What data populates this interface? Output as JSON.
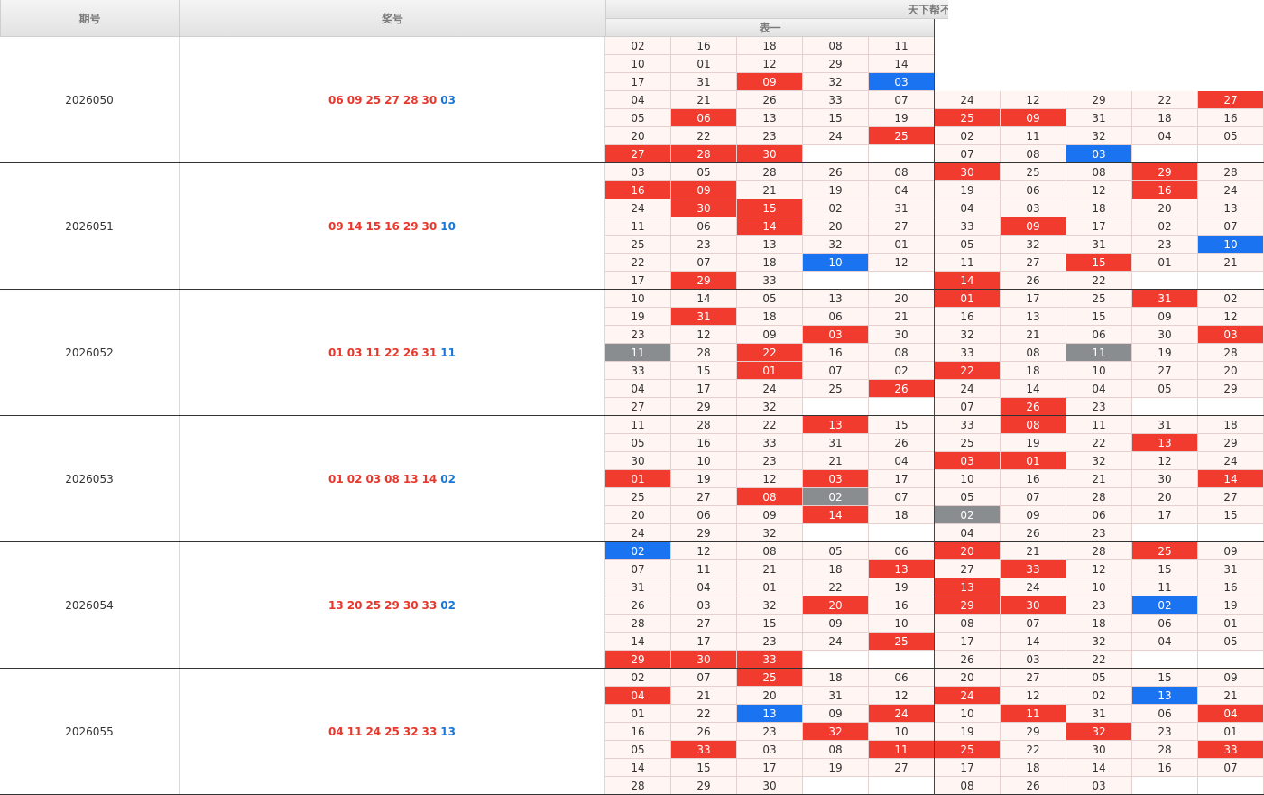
{
  "header": {
    "col_period": "期号",
    "col_number": "奖号",
    "col_group": "天下帮不同",
    "col_table1": "表一"
  },
  "colors": {
    "red": "#f23b2f",
    "blue": "#1a73f0",
    "gray": "#8a8d90",
    "cell_bg": "#fff5f3"
  },
  "rows": [
    {
      "period": "2026050",
      "red": [
        "06",
        "09",
        "25",
        "27",
        "28",
        "30"
      ],
      "blue": "03",
      "t1": [
        [
          "02",
          "16",
          "18",
          "08",
          "11"
        ],
        [
          "10",
          "01",
          "12",
          "29",
          "14"
        ],
        [
          "17",
          "31",
          "09",
          "32",
          "03"
        ],
        [
          "04",
          "21",
          "26",
          "33",
          "07"
        ],
        [
          "05",
          "06",
          "13",
          "15",
          "19"
        ],
        [
          "20",
          "22",
          "23",
          "24",
          "25"
        ],
        [
          "27",
          "28",
          "30",
          "",
          ""
        ]
      ],
      "t2": [
        [
          "",
          "",
          "",
          "",
          ""
        ],
        [
          "",
          "",
          "",
          "",
          ""
        ],
        [
          "",
          "",
          "",
          "",
          ""
        ],
        [
          "24",
          "12",
          "29",
          "22",
          "27"
        ],
        [
          "25",
          "09",
          "31",
          "18",
          "16"
        ],
        [
          "02",
          "11",
          "32",
          "04",
          "05"
        ],
        [
          "07",
          "08",
          "03",
          "",
          ""
        ]
      ]
    },
    {
      "period": "2026051",
      "red": [
        "09",
        "14",
        "15",
        "16",
        "29",
        "30"
      ],
      "blue": "10",
      "t1": [
        [
          "03",
          "05",
          "28",
          "26",
          "08"
        ],
        [
          "16",
          "09",
          "21",
          "19",
          "04"
        ],
        [
          "24",
          "30",
          "15",
          "02",
          "31"
        ],
        [
          "11",
          "06",
          "14",
          "20",
          "27"
        ],
        [
          "25",
          "23",
          "13",
          "32",
          "01"
        ],
        [
          "22",
          "07",
          "18",
          "10",
          "12"
        ],
        [
          "17",
          "29",
          "33",
          "",
          ""
        ]
      ],
      "t2": [
        [
          "30",
          "25",
          "08",
          "29",
          "28"
        ],
        [
          "19",
          "06",
          "12",
          "16",
          "24"
        ],
        [
          "04",
          "03",
          "18",
          "20",
          "13"
        ],
        [
          "33",
          "09",
          "17",
          "02",
          "07"
        ],
        [
          "05",
          "32",
          "31",
          "23",
          "10"
        ],
        [
          "11",
          "27",
          "15",
          "01",
          "21"
        ],
        [
          "14",
          "26",
          "22",
          "",
          ""
        ]
      ]
    },
    {
      "period": "2026052",
      "red": [
        "01",
        "03",
        "11",
        "22",
        "26",
        "31"
      ],
      "blue": "11",
      "t1": [
        [
          "10",
          "14",
          "05",
          "13",
          "20"
        ],
        [
          "19",
          "31",
          "18",
          "06",
          "21"
        ],
        [
          "23",
          "12",
          "09",
          "03",
          "30"
        ],
        [
          "11",
          "28",
          "22",
          "16",
          "08"
        ],
        [
          "33",
          "15",
          "01",
          "07",
          "02"
        ],
        [
          "04",
          "17",
          "24",
          "25",
          "26"
        ],
        [
          "27",
          "29",
          "32",
          "",
          ""
        ]
      ],
      "t2": [
        [
          "01",
          "17",
          "25",
          "31",
          "02"
        ],
        [
          "16",
          "13",
          "15",
          "09",
          "12"
        ],
        [
          "32",
          "21",
          "06",
          "30",
          "03"
        ],
        [
          "33",
          "08",
          "11",
          "19",
          "28"
        ],
        [
          "22",
          "18",
          "10",
          "27",
          "20"
        ],
        [
          "24",
          "14",
          "04",
          "05",
          "29"
        ],
        [
          "07",
          "26",
          "23",
          "",
          ""
        ]
      ]
    },
    {
      "period": "2026053",
      "red": [
        "01",
        "02",
        "03",
        "08",
        "13",
        "14"
      ],
      "blue": "02",
      "t1": [
        [
          "11",
          "28",
          "22",
          "13",
          "15"
        ],
        [
          "05",
          "16",
          "33",
          "31",
          "26"
        ],
        [
          "30",
          "10",
          "23",
          "21",
          "04"
        ],
        [
          "01",
          "19",
          "12",
          "03",
          "17"
        ],
        [
          "25",
          "27",
          "08",
          "02",
          "07"
        ],
        [
          "20",
          "06",
          "09",
          "14",
          "18"
        ],
        [
          "24",
          "29",
          "32",
          "",
          ""
        ]
      ],
      "t2": [
        [
          "33",
          "08",
          "11",
          "31",
          "18"
        ],
        [
          "25",
          "19",
          "22",
          "13",
          "29"
        ],
        [
          "03",
          "01",
          "32",
          "12",
          "24"
        ],
        [
          "10",
          "16",
          "21",
          "30",
          "14"
        ],
        [
          "05",
          "07",
          "28",
          "20",
          "27"
        ],
        [
          "02",
          "09",
          "06",
          "17",
          "15"
        ],
        [
          "04",
          "26",
          "23",
          "",
          ""
        ]
      ]
    },
    {
      "period": "2026054",
      "red": [
        "13",
        "20",
        "25",
        "29",
        "30",
        "33"
      ],
      "blue": "02",
      "t1": [
        [
          "02",
          "12",
          "08",
          "05",
          "06"
        ],
        [
          "07",
          "11",
          "21",
          "18",
          "13"
        ],
        [
          "31",
          "04",
          "01",
          "22",
          "19"
        ],
        [
          "26",
          "03",
          "32",
          "20",
          "16"
        ],
        [
          "28",
          "27",
          "15",
          "09",
          "10"
        ],
        [
          "14",
          "17",
          "23",
          "24",
          "25"
        ],
        [
          "29",
          "30",
          "33",
          "",
          ""
        ]
      ],
      "t2": [
        [
          "20",
          "21",
          "28",
          "25",
          "09"
        ],
        [
          "27",
          "33",
          "12",
          "15",
          "31"
        ],
        [
          "13",
          "24",
          "10",
          "11",
          "16"
        ],
        [
          "29",
          "30",
          "23",
          "02",
          "19"
        ],
        [
          "08",
          "07",
          "18",
          "06",
          "01"
        ],
        [
          "17",
          "14",
          "32",
          "04",
          "05"
        ],
        [
          "26",
          "03",
          "22",
          "",
          ""
        ]
      ]
    },
    {
      "period": "2026055",
      "red": [
        "04",
        "11",
        "24",
        "25",
        "32",
        "33"
      ],
      "blue": "13",
      "t1": [
        [
          "02",
          "07",
          "25",
          "18",
          "06"
        ],
        [
          "04",
          "21",
          "20",
          "31",
          "12"
        ],
        [
          "01",
          "22",
          "13",
          "09",
          "24"
        ],
        [
          "16",
          "26",
          "23",
          "32",
          "10"
        ],
        [
          "05",
          "33",
          "03",
          "08",
          "11"
        ],
        [
          "14",
          "15",
          "17",
          "19",
          "27"
        ],
        [
          "28",
          "29",
          "30",
          "",
          ""
        ]
      ],
      "t2": [
        [
          "20",
          "27",
          "05",
          "15",
          "09"
        ],
        [
          "24",
          "12",
          "02",
          "13",
          "21"
        ],
        [
          "10",
          "11",
          "31",
          "06",
          "04"
        ],
        [
          "19",
          "29",
          "32",
          "23",
          "01"
        ],
        [
          "25",
          "22",
          "30",
          "28",
          "33"
        ],
        [
          "17",
          "18",
          "14",
          "16",
          "07"
        ],
        [
          "08",
          "26",
          "03",
          "",
          ""
        ]
      ]
    }
  ]
}
